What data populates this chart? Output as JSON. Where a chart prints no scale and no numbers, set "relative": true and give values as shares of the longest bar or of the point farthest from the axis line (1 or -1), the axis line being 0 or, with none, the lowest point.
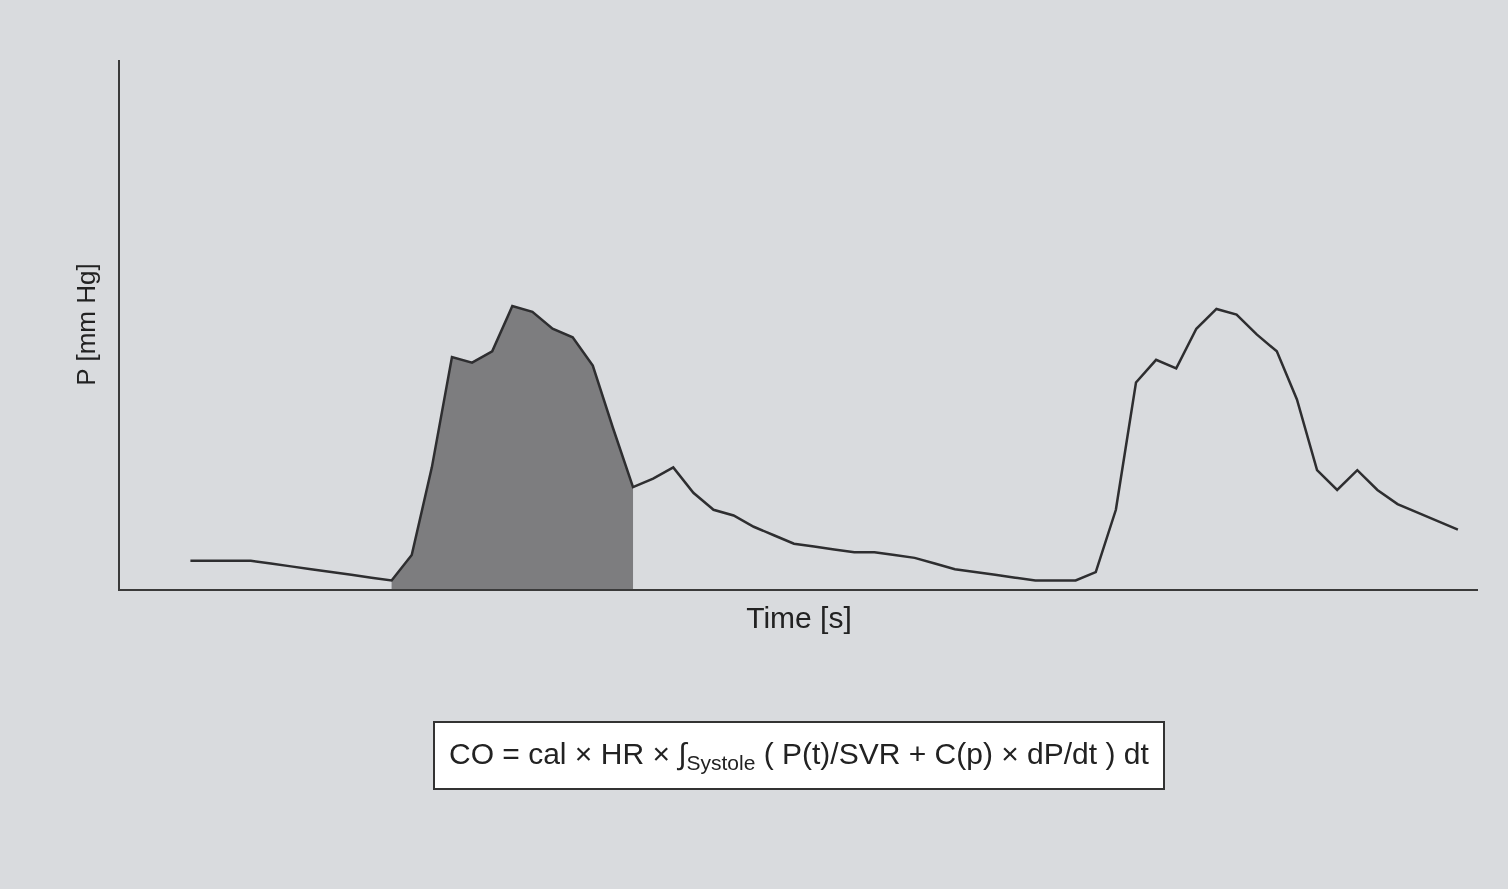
{
  "chart_data": {
    "type": "line",
    "relative": true,
    "xlabel": "Time [s]",
    "ylabel": "P [mm Hg]",
    "categories": [
      null,
      null,
      null,
      null,
      null,
      null,
      null,
      null,
      null,
      null,
      null,
      null,
      null,
      null,
      null,
      null,
      null,
      null,
      null,
      null,
      null,
      null,
      null,
      null,
      null,
      null,
      null,
      null,
      null,
      null,
      null,
      null,
      null,
      null,
      null,
      null,
      null,
      null,
      null,
      null,
      null,
      null,
      null,
      null,
      null,
      null,
      null,
      null,
      null,
      null,
      null,
      null,
      null,
      null,
      null,
      null,
      null,
      null,
      null,
      null,
      null,
      null,
      null,
      null
    ],
    "series": [
      {
        "type": "area",
        "color": "#7d7d7f",
        "values": [
          null,
          null,
          null,
          null,
          null,
          null,
          null,
          null,
          null,
          null,
          0.03,
          0.12,
          0.43,
          0.82,
          0.8,
          0.84,
          1.0,
          0.98,
          0.92,
          0.89,
          0.79,
          0.57,
          0.36,
          null,
          null,
          null,
          null,
          null,
          null,
          null,
          null,
          null,
          null,
          null,
          null,
          null,
          null,
          null,
          null,
          null,
          null,
          null,
          null,
          null,
          null,
          null,
          null,
          null,
          null,
          null,
          null,
          null,
          null,
          null,
          null,
          null,
          null,
          null,
          null,
          null,
          null,
          null,
          null,
          null
        ]
      },
      {
        "color": "#2e2e30",
        "values": [
          0.1,
          0.1,
          0.1,
          0.1,
          0.09,
          0.08,
          0.07,
          0.06,
          0.05,
          0.04,
          0.03,
          0.12,
          0.43,
          0.82,
          0.8,
          0.84,
          1.0,
          0.98,
          0.92,
          0.89,
          0.79,
          0.57,
          0.36,
          0.39,
          0.43,
          0.34,
          0.28,
          0.26,
          0.22,
          0.19,
          0.16,
          0.15,
          0.14,
          0.13,
          0.13,
          0.12,
          0.11,
          0.09,
          0.07,
          0.06,
          0.05,
          0.04,
          0.03,
          0.03,
          0.03,
          0.06,
          0.28,
          0.73,
          0.81,
          0.78,
          0.92,
          0.99,
          0.97,
          0.9,
          0.84,
          0.67,
          0.42,
          0.35,
          0.42,
          0.35,
          0.3,
          0.27,
          0.24,
          0.21
        ]
      }
    ],
    "annotations": [
      "CO = cal × HR × ∫$_{Systole}$ ( P(t)/SVR + C(p) × dP/dt ) dt"
    ]
  }
}
